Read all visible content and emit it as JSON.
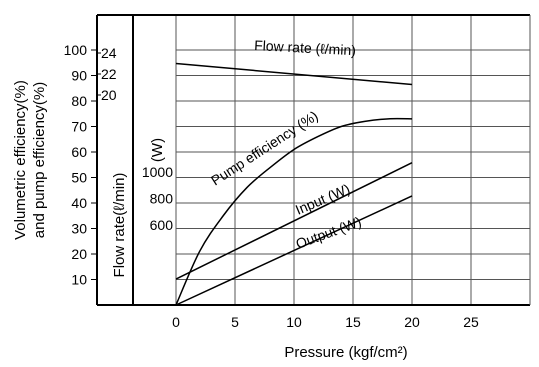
{
  "chart_data": {
    "type": "line",
    "title": "",
    "xlabel": "Pressure (kgf/cm²)",
    "x_ticks": [
      0,
      5,
      10,
      15,
      20,
      25
    ],
    "x_range": [
      -3,
      30
    ],
    "grid": true,
    "y_axes": [
      {
        "label": "Volumetric efficiency(%) and pump efficiency(%)",
        "label_lines": [
          "Volumetric efficiency(%)",
          "and pump efficiency(%)"
        ],
        "ticks": [
          10,
          20,
          30,
          40,
          50,
          60,
          70,
          80,
          90,
          100
        ],
        "range": [
          0,
          110
        ]
      },
      {
        "label": "Flow rate(ℓ/min)",
        "ticks": [
          20,
          22,
          24
        ],
        "range": [
          0,
          26.4
        ]
      },
      {
        "label": "(W)",
        "ticks": [
          600,
          800,
          1000
        ],
        "range": [
          0,
          2500
        ]
      }
    ],
    "series": [
      {
        "name": "Flow rate (ℓ/min)",
        "axis": "Flow rate(ℓ/min)",
        "x": [
          0,
          20
        ],
        "y": [
          23.0,
          21.0
        ]
      },
      {
        "name": "Pump efficiency (%)",
        "axis": "Volumetric efficiency(%) and pump efficiency(%)",
        "x": [
          0,
          2,
          4,
          6,
          8,
          10,
          12,
          14,
          16,
          18,
          20
        ],
        "y": [
          0,
          21,
          35,
          46,
          54,
          61,
          66,
          70,
          72,
          73,
          73
        ]
      },
      {
        "name": "Input (W)",
        "axis": "(W)",
        "x": [
          0,
          20
        ],
        "y": [
          195,
          1070
        ]
      },
      {
        "name": "Output (W)",
        "axis": "(W)",
        "x": [
          0,
          20
        ],
        "y": [
          0,
          820
        ]
      }
    ]
  }
}
